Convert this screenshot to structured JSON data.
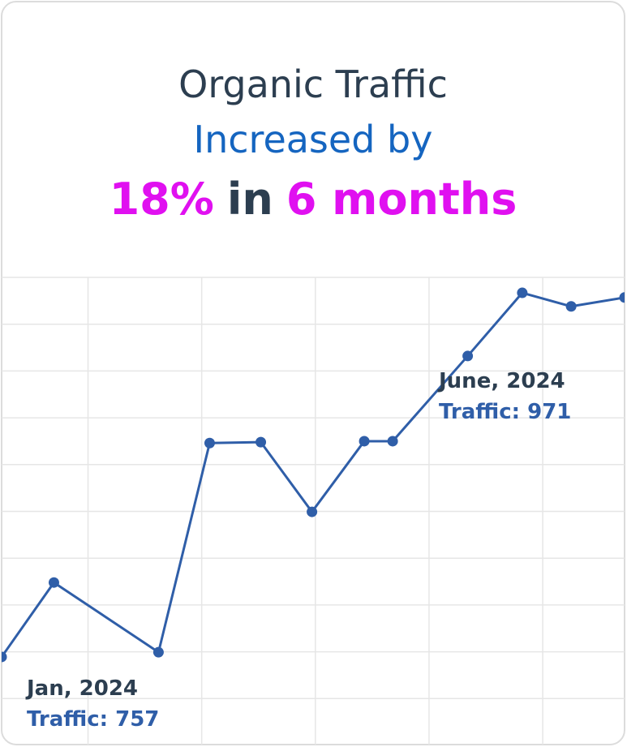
{
  "chart_data": {
    "type": "line",
    "title": {
      "line1": "Organic Traffic",
      "line2": "Increased by",
      "line3": {
        "highlight1": "18%",
        "middle": "in",
        "highlight2": "6 months"
      }
    },
    "x": [
      0.24,
      0.7,
      1.62,
      2.07,
      2.52,
      2.97,
      3.43,
      3.68,
      4.34,
      4.82,
      5.25,
      5.72
    ],
    "series": [
      {
        "color": "#2f5ea8",
        "values": [
          1.89,
          3.48,
          1.99,
          6.46,
          6.48,
          4.99,
          6.5,
          6.5,
          8.32,
          9.67,
          9.38,
          9.57
        ]
      }
    ],
    "xlim": [
      0.24,
      5.72
    ],
    "xticks": [
      1,
      2,
      3,
      4,
      5
    ],
    "ylim": [
      0,
      10
    ],
    "yticks": [
      1,
      2,
      3,
      4,
      5,
      6,
      7,
      8,
      9,
      10
    ],
    "grid": true,
    "annotations": [
      {
        "label": "Jan, 2024",
        "detail": "Traffic: 757"
      },
      {
        "label": "June, 2024",
        "detail": "Traffic: 971"
      }
    ]
  }
}
